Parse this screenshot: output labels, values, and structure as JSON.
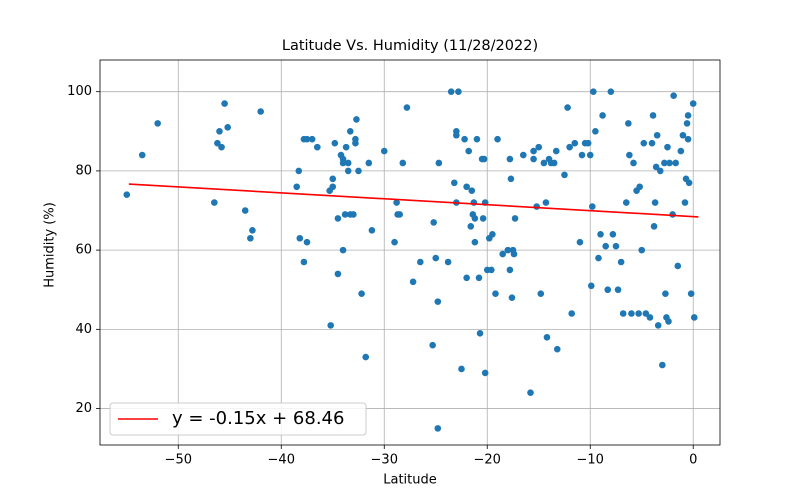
{
  "chart_data": {
    "type": "scatter",
    "title": "Latitude Vs. Humidity (11/28/2022)",
    "x_label": "Latitude",
    "y_label": "Humidity (%)",
    "xlim": [
      -57.6,
      2.6
    ],
    "ylim": [
      10.8,
      108
    ],
    "xticks": [
      {
        "value": -50,
        "label": "−50"
      },
      {
        "value": -40,
        "label": "−40"
      },
      {
        "value": -30,
        "label": "−30"
      },
      {
        "value": -20,
        "label": "−20"
      },
      {
        "value": -10,
        "label": "−10"
      },
      0
    ],
    "yticks": [
      20,
      40,
      60,
      80,
      100
    ],
    "grid": true,
    "legend": "lower left",
    "series": [
      {
        "type": "scatter",
        "color": "#1f77b4",
        "x": [
          -55,
          -53.5,
          -52,
          -46.5,
          -46.2,
          -46,
          -45.8,
          -45.5,
          -45.2,
          -42,
          -43.5,
          -43,
          -42.8,
          -38.5,
          -38.3,
          -38.2,
          -37.8,
          -37.5,
          -37.8,
          -37.5,
          -37,
          -36.5,
          -35.3,
          -35,
          -35,
          -34.8,
          -35.2,
          -34.5,
          -34.5,
          -34.2,
          -34,
          -34,
          -34,
          -33.8,
          -33.7,
          -33.5,
          -33.5,
          -33.3,
          -33.3,
          -33,
          -32.8,
          -32.8,
          -32.7,
          -32.5,
          -32.2,
          -31.8,
          -31.5,
          -31.2,
          -30,
          -29,
          -28.8,
          -28.7,
          -28.5,
          -28.2,
          -27.8,
          -27.2,
          -26.5,
          -25.3,
          -25.2,
          -25,
          -24.8,
          -24.7,
          -24.8,
          -23.8,
          -23.5,
          -23.2,
          -23,
          -23,
          -23,
          -22.8,
          -22.5,
          -22.2,
          -22,
          -22,
          -21.8,
          -21.6,
          -21.5,
          -21.4,
          -21.3,
          -21.2,
          -21.2,
          -21,
          -20.8,
          -20.7,
          -20.5,
          -20.4,
          -20.3,
          -20.2,
          -20.2,
          -20,
          -19.8,
          -19.6,
          -19.5,
          -19.2,
          -19,
          -18.5,
          -18,
          -17.8,
          -17.8,
          -17.7,
          -17.6,
          -17.5,
          -17.4,
          -17.3,
          -16.5,
          -15.8,
          -15.5,
          -15.5,
          -15.2,
          -15,
          -14.8,
          -14.5,
          -14.3,
          -14.2,
          -14,
          -13.8,
          -13.5,
          -13.3,
          -13.2,
          -12.5,
          -12.2,
          -12,
          -11.8,
          -11.5,
          -11,
          -10.8,
          -10.5,
          -10.2,
          -10,
          -9.9,
          -9.8,
          -9.7,
          -9.5,
          -9.2,
          -9,
          -8.8,
          -8.5,
          -8.3,
          -8,
          -7.8,
          -7.5,
          -7.3,
          -7,
          -6.8,
          -6.5,
          -6.3,
          -6.2,
          -6,
          -5.8,
          -5.5,
          -5.3,
          -5.2,
          -5,
          -4.8,
          -4.6,
          -4.2,
          -4,
          -3.9,
          -3.8,
          -3.7,
          -3.6,
          -3.5,
          -3.4,
          -3.2,
          -3,
          -2.8,
          -2.7,
          -2.6,
          -2.5,
          -2.4,
          -2.3,
          -2,
          -1.9,
          -1.7,
          -1.5,
          -1.2,
          -1,
          -0.8,
          -0.7,
          -0.6,
          -0.5,
          -0.5,
          -0.4,
          -0.2,
          0,
          0.1
        ],
        "values": [
          74,
          84,
          92,
          72,
          87,
          90,
          86,
          97,
          91,
          95,
          70,
          63,
          65,
          76,
          80,
          63,
          88,
          88,
          57,
          62,
          88,
          86,
          75,
          78,
          76,
          87,
          41,
          68,
          54,
          84,
          83,
          82,
          60,
          69,
          86,
          80,
          82,
          90,
          69,
          69,
          88,
          87,
          93,
          80,
          49,
          33,
          82,
          65,
          85,
          62,
          72,
          69,
          69,
          82,
          96,
          52,
          57,
          36,
          67,
          58,
          47,
          82,
          15,
          57,
          100,
          77,
          72,
          90,
          89,
          100,
          30,
          88,
          76,
          53,
          85,
          66,
          75,
          69,
          72,
          68,
          62,
          88,
          53,
          39,
          83,
          68,
          83,
          29,
          72,
          55,
          63,
          55,
          64,
          49,
          88,
          59,
          60,
          55,
          83,
          78,
          48,
          60,
          59,
          68,
          84,
          24,
          85,
          83,
          71,
          86,
          49,
          82,
          72,
          38,
          83,
          82,
          82,
          85,
          35,
          79,
          96,
          86,
          44,
          87,
          62,
          84,
          87,
          87,
          84,
          51,
          71,
          100,
          90,
          58,
          64,
          94,
          61,
          50,
          100,
          64,
          61,
          50,
          57,
          44,
          72,
          92,
          84,
          44,
          82,
          75,
          44,
          76,
          60,
          87,
          44,
          43,
          87,
          94,
          66,
          72,
          81,
          89,
          41,
          80,
          31,
          82,
          49,
          43,
          86,
          42,
          82,
          69,
          99,
          82,
          56,
          85,
          89,
          72,
          78,
          92,
          94,
          88,
          77,
          49,
          97,
          43
        ]
      },
      {
        "type": "line",
        "name": "y = -0.15x + 68.46",
        "color": "#ff0000",
        "x": [
          -54.8,
          0.5
        ],
        "values": [
          76.68,
          68.39
        ]
      }
    ]
  }
}
